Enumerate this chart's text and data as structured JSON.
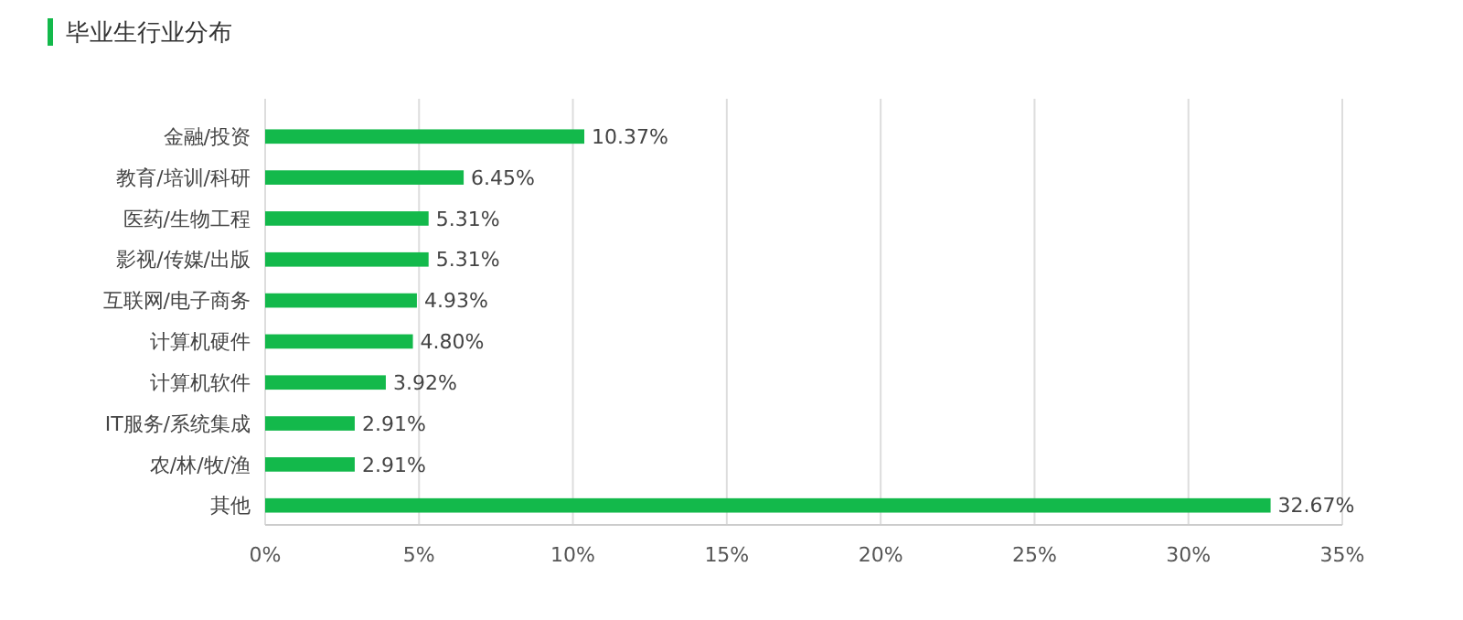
{
  "chart_data": {
    "type": "bar",
    "orientation": "horizontal",
    "title": "毕业生行业分布",
    "categories": [
      "金融/投资",
      "教育/培训/科研",
      "医药/生物工程",
      "影视/传媒/出版",
      "互联网/电子商务",
      "计算机硬件",
      "计算机软件",
      "IT服务/系统集成",
      "农/林/牧/渔",
      "其他"
    ],
    "values": [
      10.37,
      6.45,
      5.31,
      5.31,
      4.93,
      4.8,
      3.92,
      2.91,
      2.91,
      32.67
    ],
    "value_labels": [
      "10.37%",
      "6.45%",
      "5.31%",
      "5.31%",
      "4.93%",
      "4.80%",
      "3.92%",
      "2.91%",
      "2.91%",
      "32.67%"
    ],
    "color": "#13b94b",
    "xlim": [
      0,
      35
    ],
    "xticks": [
      {
        "value": 0,
        "label": "0%"
      },
      {
        "value": 5,
        "label": "5%"
      },
      {
        "value": 10,
        "label": "10%"
      },
      {
        "value": 15,
        "label": "15%"
      },
      {
        "value": 20,
        "label": "20%"
      },
      {
        "value": 25,
        "label": "25%"
      },
      {
        "value": 30,
        "label": "30%"
      },
      {
        "value": 35,
        "label": "35%"
      }
    ],
    "grid": "x"
  }
}
